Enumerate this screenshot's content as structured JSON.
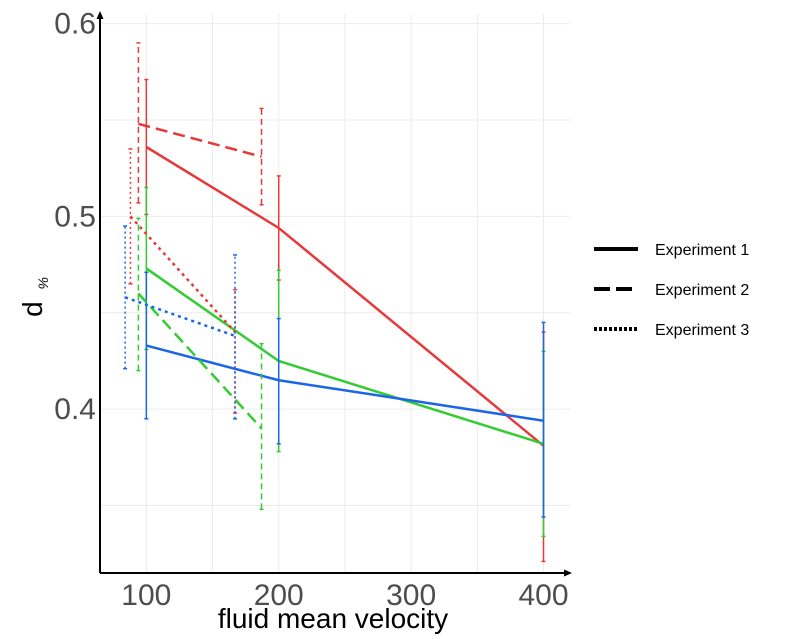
{
  "chart_data": {
    "type": "line",
    "xlabel": "fluid mean velocity",
    "ylabel": "d",
    "ylabel_subscript": "%",
    "xlim": [
      65,
      420
    ],
    "ylim": [
      0.315,
      0.605
    ],
    "xticks": [
      {
        "value": 100,
        "label": "100"
      },
      {
        "value": 200,
        "label": "200"
      },
      {
        "value": 300,
        "label": "300"
      },
      {
        "value": 400,
        "label": "400"
      }
    ],
    "yticks": [
      {
        "value": 0.4,
        "label": "0.4"
      },
      {
        "value": 0.5,
        "label": "0.5"
      },
      {
        "value": 0.6,
        "label": "0.6"
      }
    ],
    "grid": true,
    "legend_position": "right",
    "legend": [
      {
        "label": "Experiment 1",
        "dash": "solid"
      },
      {
        "label": "Experiment 2",
        "dash": "dashed"
      },
      {
        "label": "Experiment 3",
        "dash": "dotted"
      }
    ],
    "colors": {
      "red": "#e8393a",
      "green": "#33cc33",
      "blue": "#1a66e6"
    },
    "series": [
      {
        "color": "red",
        "dash": "solid",
        "x": [
          100,
          200,
          400
        ],
        "y": [
          0.536,
          0.494,
          0.381
        ],
        "err_low": [
          0.501,
          0.467,
          0.321
        ],
        "err_high": [
          0.571,
          0.521,
          0.44
        ]
      },
      {
        "color": "green",
        "dash": "solid",
        "x": [
          100,
          200,
          400
        ],
        "y": [
          0.473,
          0.425,
          0.382
        ],
        "err_low": [
          0.431,
          0.378,
          0.334
        ],
        "err_high": [
          0.515,
          0.472,
          0.43
        ]
      },
      {
        "color": "blue",
        "dash": "solid",
        "x": [
          100,
          200,
          400
        ],
        "y": [
          0.433,
          0.415,
          0.394
        ],
        "err_low": [
          0.395,
          0.382,
          0.344
        ],
        "err_high": [
          0.471,
          0.447,
          0.445
        ]
      },
      {
        "color": "red",
        "dash": "dashed",
        "x": [
          94,
          187
        ],
        "y": [
          0.548,
          0.531
        ],
        "err_low": [
          0.507,
          0.506
        ],
        "err_high": [
          0.59,
          0.556
        ]
      },
      {
        "color": "green",
        "dash": "dashed",
        "x": [
          94,
          187
        ],
        "y": [
          0.46,
          0.39
        ],
        "err_low": [
          0.42,
          0.348
        ],
        "err_high": [
          0.499,
          0.434
        ]
      },
      {
        "color": "red",
        "dash": "dotted",
        "x": [
          88,
          167
        ],
        "y": [
          0.5,
          0.44
        ],
        "err_low": [
          0.465,
          0.398
        ],
        "err_high": [
          0.535,
          0.462
        ]
      },
      {
        "color": "blue",
        "dash": "dotted",
        "x": [
          84,
          167
        ],
        "y": [
          0.458,
          0.438
        ],
        "err_low": [
          0.421,
          0.395
        ],
        "err_high": [
          0.495,
          0.48
        ]
      }
    ]
  }
}
